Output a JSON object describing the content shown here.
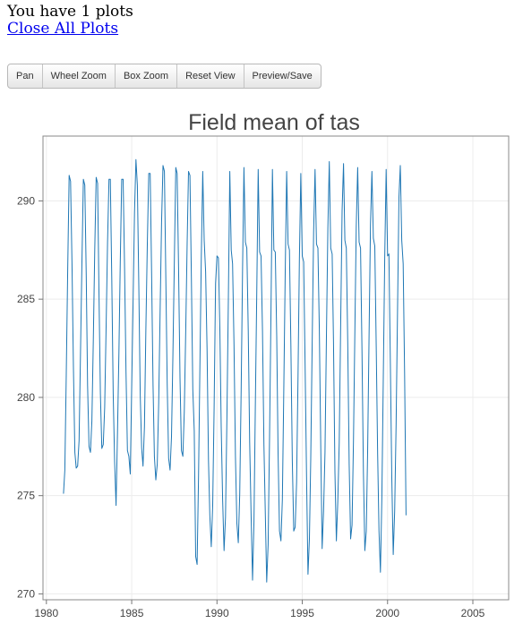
{
  "header": {
    "status_text": "You have 1 plots",
    "close_all_label": "Close All Plots"
  },
  "toolbar": {
    "pan_label": "Pan",
    "wheel_zoom_label": "Wheel Zoom",
    "box_zoom_label": "Box Zoom",
    "reset_view_label": "Reset View",
    "preview_save_label": "Preview/Save"
  },
  "chart_data": {
    "type": "line",
    "title": "Field mean of tas",
    "xlabel": "",
    "ylabel": "",
    "xlim": [
      1979.8,
      2007.1
    ],
    "ylim": [
      269.7,
      293.3
    ],
    "xticks": [
      1980,
      1985,
      1990,
      1995,
      2000,
      2005
    ],
    "yticks": [
      270,
      275,
      280,
      285,
      290
    ],
    "grid": true,
    "line_color": "#1f77b4",
    "series": [
      {
        "name": "",
        "x_start": 1981.0,
        "x_step": 0.0833333,
        "values": [
          275.1,
          276.3,
          281.2,
          286.5,
          291.3,
          291.0,
          286.8,
          281.5,
          277.2,
          276.4,
          276.5,
          277.8,
          282.3,
          286.9,
          291.1,
          290.8,
          286.2,
          280.6,
          277.5,
          277.2,
          278.8,
          282.9,
          287.5,
          291.2,
          290.9,
          285.4,
          280.2,
          277.4,
          277.6,
          279.5,
          283.6,
          287.9,
          291.1,
          291.1,
          286.1,
          280.2,
          276.7,
          274.5,
          278.2,
          282.3,
          286.9,
          291.1,
          291.1,
          286.6,
          281.3,
          277.3,
          277.0,
          276.1,
          280.4,
          284.8,
          289.4,
          292.1,
          290.8,
          285.7,
          280.1,
          277.4,
          276.5,
          278.5,
          283.5,
          287.8,
          291.4,
          291.4,
          286.3,
          280.6,
          277.0,
          275.8,
          276.6,
          279.7,
          284.4,
          288.9,
          291.8,
          291.5,
          286.3,
          280.7,
          276.9,
          276.3,
          278.0,
          282.2,
          287.0,
          291.7,
          291.4,
          286.6,
          281.0,
          277.3,
          277.0,
          279.3,
          283.4,
          287.9,
          291.5,
          291.3,
          286.1,
          280.4,
          278.3,
          271.9,
          271.5,
          276.0,
          281.5,
          287.2,
          291.5,
          288.0,
          286.4,
          282.5,
          276.8,
          274.0,
          272.4,
          274.5,
          279.5,
          285.8,
          287.2,
          287.1,
          283.5,
          278.5,
          274.8,
          272.2,
          273.9,
          279.0,
          285.0,
          291.5,
          287.5,
          286.8,
          282.7,
          277.0,
          273.6,
          272.6,
          275.1,
          280.4,
          286.7,
          291.7,
          287.9,
          287.6,
          283.4,
          277.7,
          274.0,
          270.7,
          273.7,
          279.5,
          285.3,
          291.6,
          287.4,
          287.2,
          283.4,
          277.6,
          274.0,
          270.6,
          272.5,
          278.0,
          284.4,
          291.6,
          287.5,
          287.4,
          283.1,
          277.2,
          273.2,
          272.7,
          274.8,
          280.4,
          286.4,
          291.5,
          287.8,
          287.5,
          282.7,
          276.8,
          273.2,
          273.4,
          275.7,
          281.1,
          287.0,
          291.4,
          287.2,
          286.9,
          281.6,
          276.0,
          271.0,
          272.8,
          276.9,
          282.8,
          288.4,
          291.6,
          287.8,
          287.6,
          283.4,
          277.4,
          272.3,
          274.2,
          277.2,
          283.1,
          288.6,
          292.0,
          287.6,
          287.3,
          282.8,
          276.2,
          272.7,
          274.7,
          277.7,
          283.7,
          289.5,
          291.9,
          288.0,
          287.6,
          282.8,
          276.6,
          272.8,
          273.5,
          277.8,
          283.5,
          288.7,
          291.7,
          287.9,
          287.6,
          282.4,
          276.2,
          272.2,
          273.2,
          277.2,
          283.1,
          288.8,
          291.5,
          288.1,
          287.7,
          282.6,
          277.1,
          273.2,
          271.1,
          274.9,
          281.0,
          287.1,
          291.6,
          287.2,
          287.3,
          281.7,
          275.9,
          272.0,
          274.2,
          278.6,
          284.4,
          290.2,
          291.8,
          288.0,
          286.8,
          281.2,
          274.0
        ]
      }
    ]
  }
}
